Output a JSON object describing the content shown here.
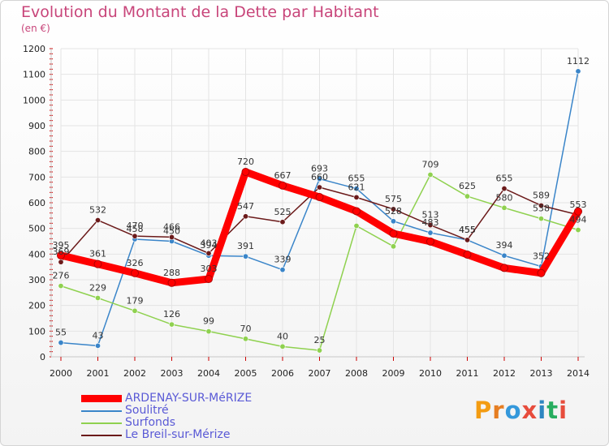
{
  "title": "Evolution du Montant de la Dette par Habitant",
  "subtitle": "(en €)",
  "logo_text": "Proxiti",
  "colors": {
    "background": "#ffffff",
    "grid": "#e4e4e4",
    "title": "#c8457a",
    "axis_red": "#cc0000"
  },
  "chart_data": {
    "type": "line",
    "title": "Evolution du Montant de la Dette par Habitant",
    "ylabel": "(en €)",
    "xlabel": "",
    "x": [
      "2000",
      "2001",
      "2002",
      "2003",
      "2004",
      "2005",
      "2006",
      "2007",
      "2008",
      "2009",
      "2010",
      "2011",
      "2012",
      "2013",
      "2014"
    ],
    "ylim": [
      0,
      1200
    ],
    "yticks": [
      0,
      100,
      200,
      300,
      400,
      500,
      600,
      700,
      800,
      900,
      1000,
      1100,
      1200
    ],
    "grid": true,
    "legend_position": "bottom-left",
    "series": [
      {
        "name": "ARDENAY-SUR-MéRIZE",
        "color": "#ff0000",
        "values": [
          395,
          361,
          326,
          288,
          303,
          720,
          667,
          622,
          567,
          480,
          449,
          398,
          346,
          326,
          566
        ],
        "labels": [
          "395",
          "361",
          "326",
          "288",
          "303",
          "720",
          "667",
          "",
          "",
          "",
          "",
          "",
          "",
          "",
          ""
        ]
      },
      {
        "name": "Soulitré",
        "color": "#3a85c9",
        "values": [
          55,
          43,
          458,
          450,
          394,
          391,
          339,
          693,
          655,
          528,
          483,
          455,
          394,
          352,
          1112
        ],
        "labels": [
          "55",
          "43",
          "458",
          "450",
          "394",
          "391",
          "339",
          "693",
          "655",
          "528",
          "483",
          "455",
          "394",
          "352",
          "1112"
        ]
      },
      {
        "name": "Surfonds",
        "color": "#8fd14f",
        "values": [
          276,
          229,
          179,
          126,
          99,
          70,
          40,
          25,
          510,
          430,
          709,
          625,
          580,
          538,
          494
        ],
        "labels": [
          "276",
          "229",
          "179",
          "126",
          "99",
          "70",
          "40",
          "25",
          "",
          "",
          "709",
          "625",
          "580",
          "538",
          "494"
        ]
      },
      {
        "name": "Le Breil-sur-Mérize",
        "color": "#6b1a1a",
        "values": [
          369,
          532,
          470,
          466,
          403,
          547,
          525,
          660,
          621,
          575,
          513,
          455,
          655,
          589,
          553
        ],
        "labels": [
          "369",
          "532",
          "470",
          "466",
          "403",
          "547",
          "525",
          "660",
          "621",
          "575",
          "513",
          "455",
          "655",
          "589",
          "553"
        ]
      }
    ]
  },
  "legend": [
    {
      "name": "ARDENAY-SUR-MéRIZE",
      "color": "#ff0000",
      "text_color": "#5a5ad6",
      "thick": true
    },
    {
      "name": "Soulitré",
      "color": "#3a85c9",
      "text_color": "#5a5ad6",
      "thick": false
    },
    {
      "name": "Surfonds",
      "color": "#8fd14f",
      "text_color": "#5a5ad6",
      "thick": false
    },
    {
      "name": "Le Breil-sur-Mérize",
      "color": "#6b1a1a",
      "text_color": "#5a5ad6",
      "thick": false
    }
  ]
}
